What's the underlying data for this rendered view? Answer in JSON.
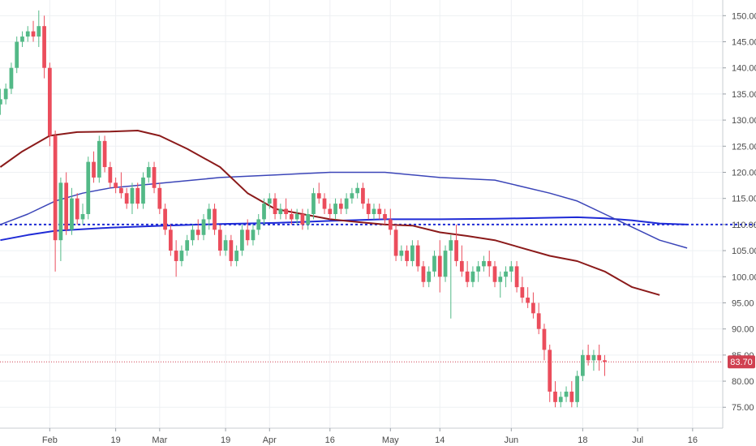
{
  "chart_data": {
    "type": "candlestick",
    "y_axis": {
      "ylim": [
        71,
        153
      ],
      "ticks": [
        "75.00",
        "80.00",
        "85.00",
        "90.00",
        "95.00",
        "100.00",
        "105.00",
        "110.00",
        "115.00",
        "120.00",
        "125.00",
        "130.00",
        "135.00",
        "140.00",
        "145.00",
        "150.00"
      ]
    },
    "x_axis": {
      "ticks": [
        {
          "label": "Feb",
          "index": 9
        },
        {
          "label": "19",
          "index": 21
        },
        {
          "label": "Mar",
          "index": 29
        },
        {
          "label": "19",
          "index": 41
        },
        {
          "label": "Apr",
          "index": 49
        },
        {
          "label": "16",
          "index": 60
        },
        {
          "label": "May",
          "index": 71
        },
        {
          "label": "14",
          "index": 80
        },
        {
          "label": "Jun",
          "index": 93
        },
        {
          "label": "18",
          "index": 106
        },
        {
          "label": "Jul",
          "index": 116
        },
        {
          "label": "16",
          "index": 126
        }
      ],
      "n_slots": 128
    },
    "candles": [
      [
        133,
        136,
        131,
        134
      ],
      [
        134,
        137,
        133,
        136
      ],
      [
        136,
        141,
        135,
        140
      ],
      [
        140,
        146,
        139,
        145
      ],
      [
        145,
        147,
        144,
        146
      ],
      [
        146,
        148,
        145,
        147
      ],
      [
        147,
        149,
        145,
        146
      ],
      [
        146,
        151,
        144,
        148
      ],
      [
        148,
        150,
        138,
        140
      ],
      [
        140,
        141,
        125,
        127
      ],
      [
        127,
        128,
        101,
        107
      ],
      [
        107,
        119,
        103,
        118
      ],
      [
        118,
        120,
        108,
        109
      ],
      [
        109,
        117,
        108,
        115
      ],
      [
        115,
        116,
        110,
        111
      ],
      [
        111,
        114,
        110,
        112
      ],
      [
        112,
        123,
        111,
        122
      ],
      [
        122,
        124,
        118,
        119
      ],
      [
        119,
        127,
        118,
        126
      ],
      [
        126,
        127,
        120,
        121
      ],
      [
        121,
        122,
        117,
        118
      ],
      [
        118,
        119,
        116,
        117
      ],
      [
        117,
        120,
        115,
        116
      ],
      [
        116,
        117,
        113,
        114
      ],
      [
        114,
        118,
        112,
        117
      ],
      [
        117,
        118,
        113,
        114
      ],
      [
        114,
        120,
        113,
        119
      ],
      [
        119,
        122,
        118,
        121
      ],
      [
        121,
        122,
        116,
        117
      ],
      [
        117,
        118,
        112,
        113
      ],
      [
        113,
        114,
        108,
        109
      ],
      [
        109,
        110,
        104,
        105
      ],
      [
        105,
        107,
        100,
        103
      ],
      [
        103,
        106,
        102,
        105
      ],
      [
        105,
        108,
        104,
        107
      ],
      [
        107,
        110,
        106,
        109
      ],
      [
        109,
        111,
        107,
        108
      ],
      [
        108,
        112,
        107,
        111
      ],
      [
        111,
        114,
        109,
        113
      ],
      [
        113,
        114,
        108,
        109
      ],
      [
        109,
        110,
        104,
        105
      ],
      [
        105,
        108,
        104,
        107
      ],
      [
        107,
        108,
        102,
        103
      ],
      [
        103,
        106,
        102,
        105
      ],
      [
        105,
        110,
        104,
        109
      ],
      [
        109,
        111,
        106,
        107
      ],
      [
        107,
        110,
        106,
        109
      ],
      [
        109,
        112,
        108,
        111
      ],
      [
        111,
        115,
        110,
        114
      ],
      [
        114,
        116,
        113,
        115
      ],
      [
        115,
        116,
        111,
        112
      ],
      [
        112,
        114,
        111,
        113
      ],
      [
        113,
        115,
        111,
        112
      ],
      [
        112,
        113,
        110,
        111
      ],
      [
        111,
        113,
        110,
        112
      ],
      [
        112,
        113,
        109,
        110
      ],
      [
        110,
        113,
        109,
        112
      ],
      [
        112,
        117,
        111,
        116
      ],
      [
        116,
        118,
        114,
        115
      ],
      [
        115,
        116,
        112,
        113
      ],
      [
        113,
        114,
        111,
        112
      ],
      [
        112,
        115,
        111,
        114
      ],
      [
        114,
        115,
        112,
        113
      ],
      [
        113,
        116,
        112,
        115
      ],
      [
        115,
        117,
        114,
        116
      ],
      [
        116,
        118,
        115,
        117
      ],
      [
        117,
        118,
        113,
        114
      ],
      [
        114,
        115,
        111,
        112
      ],
      [
        112,
        114,
        111,
        113
      ],
      [
        113,
        114,
        111,
        112
      ],
      [
        112,
        113,
        110,
        111
      ],
      [
        111,
        113,
        108,
        109
      ],
      [
        109,
        110,
        103,
        104
      ],
      [
        104,
        106,
        103,
        105
      ],
      [
        105,
        106,
        102,
        103
      ],
      [
        103,
        107,
        102,
        106
      ],
      [
        106,
        107,
        101,
        102
      ],
      [
        102,
        103,
        98,
        99
      ],
      [
        99,
        102,
        98,
        101
      ],
      [
        101,
        105,
        100,
        104
      ],
      [
        104,
        107,
        97,
        100
      ],
      [
        100,
        106,
        99,
        105
      ],
      [
        105,
        108,
        92,
        107
      ],
      [
        107,
        110,
        102,
        103
      ],
      [
        103,
        106,
        100,
        101
      ],
      [
        101,
        103,
        98,
        99
      ],
      [
        99,
        102,
        98,
        101
      ],
      [
        101,
        103,
        99,
        102
      ],
      [
        102,
        104,
        101,
        103
      ],
      [
        103,
        105,
        100,
        102
      ],
      [
        102,
        103,
        98,
        99
      ],
      [
        99,
        101,
        96,
        100
      ],
      [
        100,
        102,
        98,
        101
      ],
      [
        101,
        103,
        99,
        102
      ],
      [
        102,
        103,
        97,
        98
      ],
      [
        98,
        100,
        95,
        96
      ],
      [
        96,
        98,
        94,
        95
      ],
      [
        95,
        97,
        92,
        93
      ],
      [
        93,
        95,
        89,
        90
      ],
      [
        90,
        91,
        84,
        86
      ],
      [
        86,
        87,
        76,
        78
      ],
      [
        78,
        80,
        75,
        76
      ],
      [
        76,
        78,
        75,
        77
      ],
      [
        77,
        79,
        76,
        78
      ],
      [
        78,
        80,
        75,
        76
      ],
      [
        76,
        82,
        75,
        81
      ],
      [
        81,
        86,
        80,
        85
      ],
      [
        85,
        87,
        83,
        84
      ],
      [
        84,
        86,
        82,
        85
      ],
      [
        85,
        87,
        82,
        84
      ],
      [
        84,
        85,
        81,
        83.7
      ]
    ],
    "ma_red": [
      [
        0,
        121
      ],
      [
        4,
        124
      ],
      [
        9,
        127
      ],
      [
        14,
        127.7
      ],
      [
        20,
        127.8
      ],
      [
        25,
        128
      ],
      [
        29,
        127
      ],
      [
        34,
        124.5
      ],
      [
        40,
        121
      ],
      [
        45,
        116
      ],
      [
        50,
        113
      ],
      [
        55,
        112
      ],
      [
        60,
        111
      ],
      [
        65,
        110.5
      ],
      [
        70,
        110
      ],
      [
        75,
        109.8
      ],
      [
        80,
        108.5
      ],
      [
        85,
        107.8
      ],
      [
        90,
        107
      ],
      [
        95,
        105.5
      ],
      [
        100,
        104
      ],
      [
        105,
        103
      ],
      [
        110,
        101
      ],
      [
        115,
        98
      ],
      [
        120,
        96.5
      ]
    ],
    "ma_blue_thin": [
      [
        0,
        110
      ],
      [
        5,
        112
      ],
      [
        10,
        114.5
      ],
      [
        15,
        116
      ],
      [
        20,
        117
      ],
      [
        25,
        117.5
      ],
      [
        30,
        118
      ],
      [
        40,
        119
      ],
      [
        50,
        119.5
      ],
      [
        60,
        120
      ],
      [
        70,
        120
      ],
      [
        80,
        119
      ],
      [
        90,
        118.5
      ],
      [
        100,
        116
      ],
      [
        105,
        114.5
      ],
      [
        110,
        112
      ],
      [
        115,
        109.5
      ],
      [
        120,
        107
      ],
      [
        125,
        105.5
      ]
    ],
    "ma_blue_thick": [
      [
        0,
        107
      ],
      [
        5,
        108
      ],
      [
        10,
        108.8
      ],
      [
        20,
        109.4
      ],
      [
        30,
        109.8
      ],
      [
        40,
        110.1
      ],
      [
        50,
        110.3
      ],
      [
        60,
        110.7
      ],
      [
        70,
        111
      ],
      [
        80,
        111
      ],
      [
        90,
        111.1
      ],
      [
        100,
        111.3
      ],
      [
        105,
        111.4
      ],
      [
        110,
        111.2
      ],
      [
        115,
        110.8
      ],
      [
        120,
        110.2
      ],
      [
        125,
        110
      ]
    ],
    "hline_blue": 110,
    "last_price": {
      "value": 83.7,
      "label": "83.70"
    },
    "colors": {
      "up": "#53b987",
      "down": "#eb4d5c",
      "ma_red": "#8b1a1a",
      "ma_blue_thin": "#3b45b8",
      "ma_blue_thick": "#1f2bd6",
      "hline": "#1f2bd6",
      "price_line": "#d04050",
      "grid": "#eef0f3",
      "axis": "#4a4a4a"
    }
  }
}
